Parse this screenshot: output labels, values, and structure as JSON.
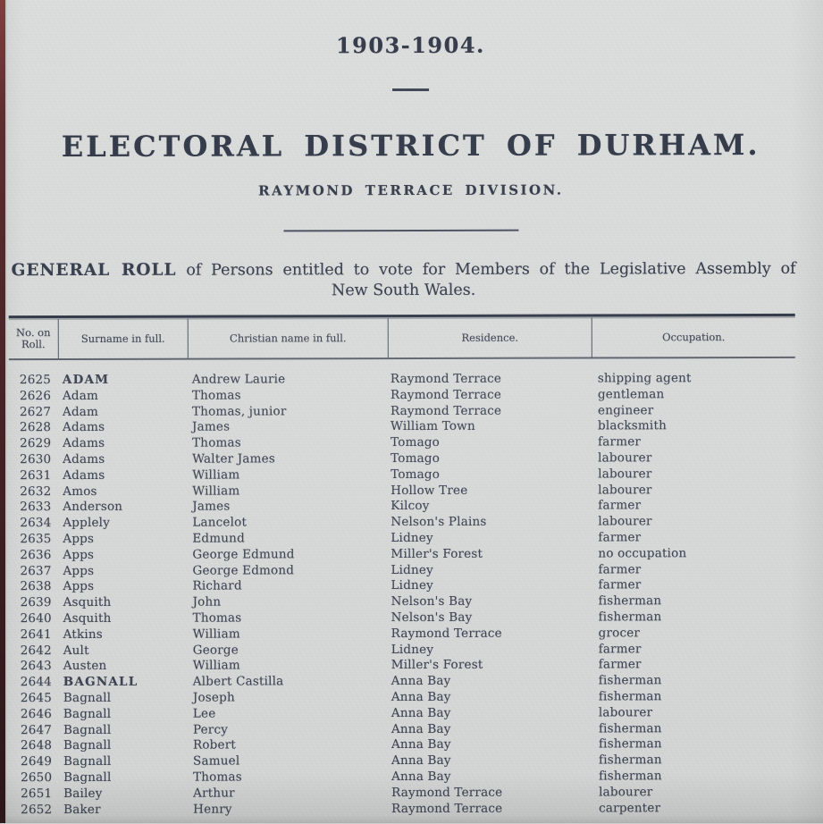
{
  "colors": {
    "paper": "#d8dad9",
    "ink": "#39404f",
    "heading_ink": "#2c3342",
    "page_edge": "#4a2529"
  },
  "header": {
    "year": "1903-1904.",
    "district_title": "ELECTORAL DISTRICT OF DURHAM.",
    "division_subtitle": "RAYMOND TERRACE DIVISION."
  },
  "intro": {
    "lead": "GENERAL ROLL",
    "line1_rest": " of Persons entitled to vote for Members of the Legislative Assembly of",
    "line2": "New South Wales."
  },
  "table": {
    "columns": [
      "No. on Roll.",
      "Surname in full.",
      "Christian name in full.",
      "Residence.",
      "Occupation."
    ],
    "rows": [
      {
        "no": "2625",
        "surname": "ADAM",
        "christian": "Andrew Laurie",
        "residence": "Raymond Terrace",
        "occupation": "shipping agent"
      },
      {
        "no": "2626",
        "surname": "Adam",
        "christian": "Thomas",
        "residence": "Raymond Terrace",
        "occupation": "gentleman"
      },
      {
        "no": "2627",
        "surname": "Adam",
        "christian": "Thomas, junior",
        "residence": "Raymond Terrace",
        "occupation": "engineer"
      },
      {
        "no": "2628",
        "surname": "Adams",
        "christian": "James",
        "residence": "William Town",
        "occupation": "blacksmith"
      },
      {
        "no": "2629",
        "surname": "Adams",
        "christian": "Thomas",
        "residence": "Tomago",
        "occupation": "farmer"
      },
      {
        "no": "2630",
        "surname": "Adams",
        "christian": "Walter James",
        "residence": "Tomago",
        "occupation": "labourer"
      },
      {
        "no": "2631",
        "surname": "Adams",
        "christian": "William",
        "residence": "Tomago",
        "occupation": "labourer"
      },
      {
        "no": "2632",
        "surname": "Amos",
        "christian": "William",
        "residence": "Hollow Tree",
        "occupation": "labourer"
      },
      {
        "no": "2633",
        "surname": "Anderson",
        "christian": "James",
        "residence": "Kilcoy",
        "occupation": "farmer"
      },
      {
        "no": "2634",
        "surname": "Applely",
        "christian": "Lancelot",
        "residence": "Nelson's Plains",
        "occupation": "labourer"
      },
      {
        "no": "2635",
        "surname": "Apps",
        "christian": "Edmund",
        "residence": "Lidney",
        "occupation": "farmer"
      },
      {
        "no": "2636",
        "surname": "Apps",
        "christian": "George Edmund",
        "residence": "Miller's Forest",
        "occupation": "no occupation"
      },
      {
        "no": "2637",
        "surname": "Apps",
        "christian": "George Edmond",
        "residence": "Lidney",
        "occupation": "farmer"
      },
      {
        "no": "2638",
        "surname": "Apps",
        "christian": "Richard",
        "residence": "Lidney",
        "occupation": "farmer"
      },
      {
        "no": "2639",
        "surname": "Asquith",
        "christian": "John",
        "residence": "Nelson's Bay",
        "occupation": "fisherman"
      },
      {
        "no": "2640",
        "surname": "Asquith",
        "christian": "Thomas",
        "residence": "Nelson's Bay",
        "occupation": "fisherman"
      },
      {
        "no": "2641",
        "surname": "Atkins",
        "christian": "William",
        "residence": "Raymond Terrace",
        "occupation": "grocer"
      },
      {
        "no": "2642",
        "surname": "Ault",
        "christian": "George",
        "residence": "Lidney",
        "occupation": "farmer"
      },
      {
        "no": "2643",
        "surname": "Austen",
        "christian": "William",
        "residence": "Miller's Forest",
        "occupation": "farmer"
      },
      {
        "no": "2644",
        "surname": "BAGNALL",
        "christian": "Albert Castilla",
        "residence": "Anna Bay",
        "occupation": "fisherman"
      },
      {
        "no": "2645",
        "surname": "Bagnall",
        "christian": "Joseph",
        "residence": "Anna Bay",
        "occupation": "fisherman"
      },
      {
        "no": "2646",
        "surname": "Bagnall",
        "christian": "Lee",
        "residence": "Anna Bay",
        "occupation": "labourer"
      },
      {
        "no": "2647",
        "surname": "Bagnall",
        "christian": "Percy",
        "residence": "Anna Bay",
        "occupation": "fisherman"
      },
      {
        "no": "2648",
        "surname": "Bagnall",
        "christian": "Robert",
        "residence": "Anna Bay",
        "occupation": "fisherman"
      },
      {
        "no": "2649",
        "surname": "Bagnall",
        "christian": "Samuel",
        "residence": "Anna Bay",
        "occupation": "fisherman"
      },
      {
        "no": "2650",
        "surname": "Bagnall",
        "christian": "Thomas",
        "residence": "Anna Bay",
        "occupation": "fisherman"
      },
      {
        "no": "2651",
        "surname": "Bailey",
        "christian": "Arthur",
        "residence": "Raymond Terrace",
        "occupation": "labourer"
      },
      {
        "no": "2652",
        "surname": "Baker",
        "christian": "Henry",
        "residence": "Raymond Terrace",
        "occupation": "carpenter"
      }
    ]
  }
}
